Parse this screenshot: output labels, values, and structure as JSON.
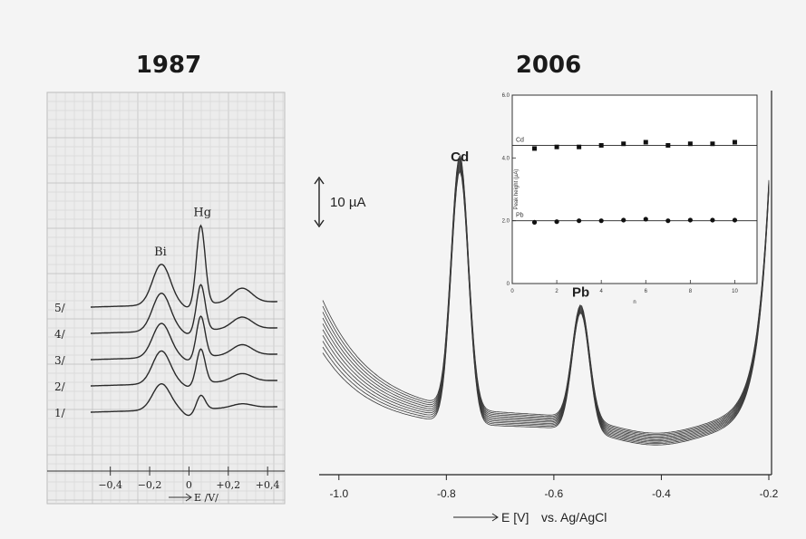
{
  "titles": {
    "left": "1987",
    "right": "2006"
  },
  "chart_data": [
    {
      "type": "line",
      "title": "1987",
      "xlabel": "E /V/",
      "x_ticks": [
        "−0,4",
        "−0,2",
        "0",
        "+0,2",
        "+0,4"
      ],
      "x_tick_values": [
        -0.4,
        -0.2,
        0,
        0.2,
        0.4
      ],
      "xlim": [
        -0.5,
        0.45
      ],
      "peaks": [
        {
          "label": "Bi",
          "x": -0.14
        },
        {
          "label": "Hg",
          "x": 0.06
        }
      ],
      "series": [
        {
          "name": "1/",
          "baseline": 0.0,
          "bi_height": 1.0,
          "hg_height": 0.55,
          "third_height": 0.15
        },
        {
          "name": "2/",
          "baseline": 1.0,
          "bi_height": 1.25,
          "hg_height": 1.3,
          "third_height": 0.3
        },
        {
          "name": "3/",
          "baseline": 2.0,
          "bi_height": 1.3,
          "hg_height": 1.55,
          "third_height": 0.4
        },
        {
          "name": "4/",
          "baseline": 3.0,
          "bi_height": 1.45,
          "hg_height": 1.75,
          "third_height": 0.45
        },
        {
          "name": "5/",
          "baseline": 4.0,
          "bi_height": 1.55,
          "hg_height": 3.0,
          "third_height": 0.55
        }
      ],
      "grid": true
    },
    {
      "type": "line",
      "title": "2006",
      "xlabel": "E [V]",
      "xlabel_suffix": "vs. Ag/AgCl",
      "x_ticks": [
        "-1.0",
        "-0.8",
        "-0.6",
        "-0.4",
        "-0.2"
      ],
      "x_tick_values": [
        -1.0,
        -0.8,
        -0.6,
        -0.4,
        -0.2
      ],
      "xlim": [
        -1.03,
        -0.2
      ],
      "scale_bar_label": "10 µA",
      "peaks": [
        {
          "label": "Cd",
          "x": -0.775,
          "height": 32
        },
        {
          "label": "Pb",
          "x": -0.55,
          "height": 15
        }
      ],
      "n_overlaid_scans": 10,
      "grid": false
    },
    {
      "type": "scatter",
      "title": "",
      "xlabel": "n",
      "ylabel": "Peak height (µA)",
      "xlim": [
        0,
        11
      ],
      "ylim": [
        0,
        6
      ],
      "x_ticks": [
        "0",
        "2",
        "4",
        "6",
        "8",
        "10"
      ],
      "y_ticks": [
        "0",
        "2.0",
        "4.0",
        "6.0"
      ],
      "series": [
        {
          "name": "Cd",
          "x": [
            1,
            2,
            3,
            4,
            5,
            6,
            7,
            8,
            9,
            10
          ],
          "values": [
            4.3,
            4.35,
            4.35,
            4.4,
            4.45,
            4.5,
            4.4,
            4.45,
            4.45,
            4.5
          ],
          "mean": 4.4,
          "marker": "square"
        },
        {
          "name": "Pb",
          "x": [
            1,
            2,
            3,
            4,
            5,
            6,
            7,
            8,
            9,
            10
          ],
          "values": [
            1.95,
            1.97,
            2.0,
            2.0,
            2.02,
            2.05,
            2.0,
            2.02,
            2.02,
            2.02
          ],
          "mean": 2.0,
          "marker": "circle"
        }
      ],
      "grid": false
    }
  ]
}
